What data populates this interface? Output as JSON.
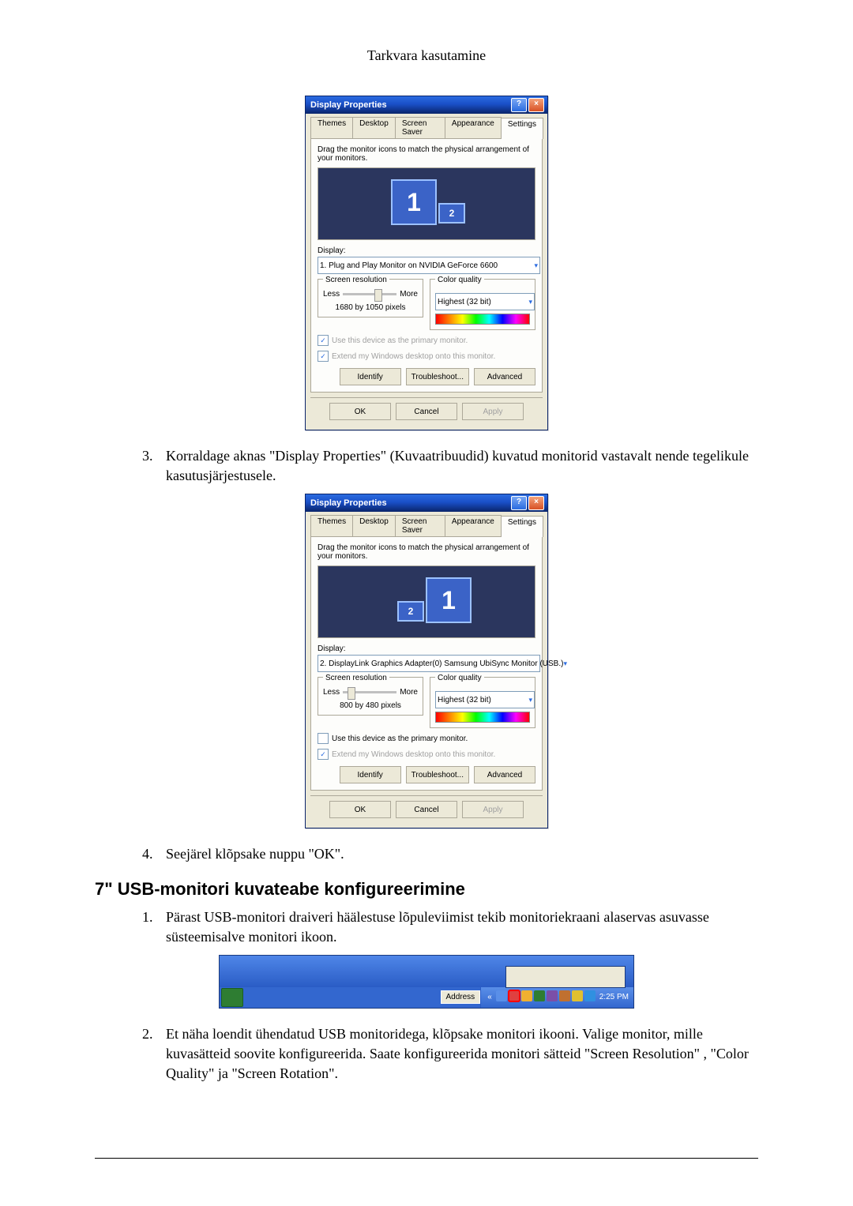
{
  "header": "Tarkvara kasutamine",
  "list_before_fig1": [],
  "dialog1": {
    "title": "Display Properties",
    "tabs": [
      "Themes",
      "Desktop",
      "Screen Saver",
      "Appearance",
      "Settings"
    ],
    "active_tab": "Settings",
    "hint": "Drag the monitor icons to match the physical arrangement of your monitors.",
    "monitor_layout": "1-large-left-2-small-right",
    "display_label": "Display:",
    "display_value": "1. Plug and Play Monitor on NVIDIA GeForce 6600",
    "res_group_title": "Screen resolution",
    "res_less": "Less",
    "res_more": "More",
    "res_value": "1680 by 1050 pixels",
    "slider_pos": 0.58,
    "color_group_title": "Color quality",
    "color_value": "Highest (32 bit)",
    "chk1_label": "Use this device as the primary monitor.",
    "chk1_checked": true,
    "chk1_disabled": true,
    "chk2_label": "Extend my Windows desktop onto this monitor.",
    "chk2_checked": true,
    "chk2_disabled": true,
    "btn_identify": "Identify",
    "btn_troubleshoot": "Troubleshoot...",
    "btn_advanced": "Advanced",
    "btn_ok": "OK",
    "btn_cancel": "Cancel",
    "btn_apply": "Apply",
    "apply_disabled": true
  },
  "item3": "Korraldage aknas \"Display Properties\" (Kuvaatribuudid) kuvatud monitorid vastavalt nende tegelikule kasutusjärjestusele.",
  "dialog2": {
    "title": "Display Properties",
    "tabs": [
      "Themes",
      "Desktop",
      "Screen Saver",
      "Appearance",
      "Settings"
    ],
    "active_tab": "Settings",
    "hint": "Drag the monitor icons to match the physical arrangement of your monitors.",
    "monitor_layout": "2-small-left-1-large-right",
    "display_label": "Display:",
    "display_value": "2.  DisplayLink Graphics Adapter(0) Samsung UbiSync Monitor (USB.)",
    "res_group_title": "Screen resolution",
    "res_less": "Less",
    "res_more": "More",
    "res_value": "800 by 480 pixels",
    "slider_pos": 0.08,
    "color_group_title": "Color quality",
    "color_value": "Highest (32 bit)",
    "chk1_label": "Use this device as the primary monitor.",
    "chk1_checked": false,
    "chk1_disabled": false,
    "chk2_label": "Extend my Windows desktop onto this monitor.",
    "chk2_checked": true,
    "chk2_disabled": true,
    "btn_identify": "Identify",
    "btn_troubleshoot": "Troubleshoot...",
    "btn_advanced": "Advanced",
    "btn_ok": "OK",
    "btn_cancel": "Cancel",
    "btn_apply": "Apply",
    "apply_disabled": true
  },
  "item4": "Seejärel klõpsake nuppu \"OK\".",
  "section_heading": "7\" USB-monitori kuvateabe konfigureerimine",
  "item_b1": "Pärast USB-monitori draiveri häälestuse lõpuleviimist tekib monitoriekraani alaservas asuvasse süsteemisalve monitori ikoon.",
  "taskbar": {
    "address_label": "Address",
    "chevron": "«",
    "icons": [
      {
        "color": "#5a8fe8",
        "highlight": false
      },
      {
        "color": "#e04040",
        "highlight": true
      },
      {
        "color": "#f0b030",
        "highlight": false
      },
      {
        "color": "#2e7d32",
        "highlight": false
      },
      {
        "color": "#7b4fa8",
        "highlight": false
      },
      {
        "color": "#c07030",
        "highlight": false
      },
      {
        "color": "#e0c030",
        "highlight": false
      },
      {
        "color": "#3090e0",
        "highlight": false
      }
    ],
    "time": "2:25 PM"
  },
  "item_b2": "Et näha loendit ühendatud USB monitoridega, klõpsake monitori ikooni. Valige monitor, mille kuvasätteid soovite konfigureerida. Saate konfigureerida monitori sätteid \"Screen Resolution\" , \"Color Quality\" ja \"Screen Rotation\"."
}
